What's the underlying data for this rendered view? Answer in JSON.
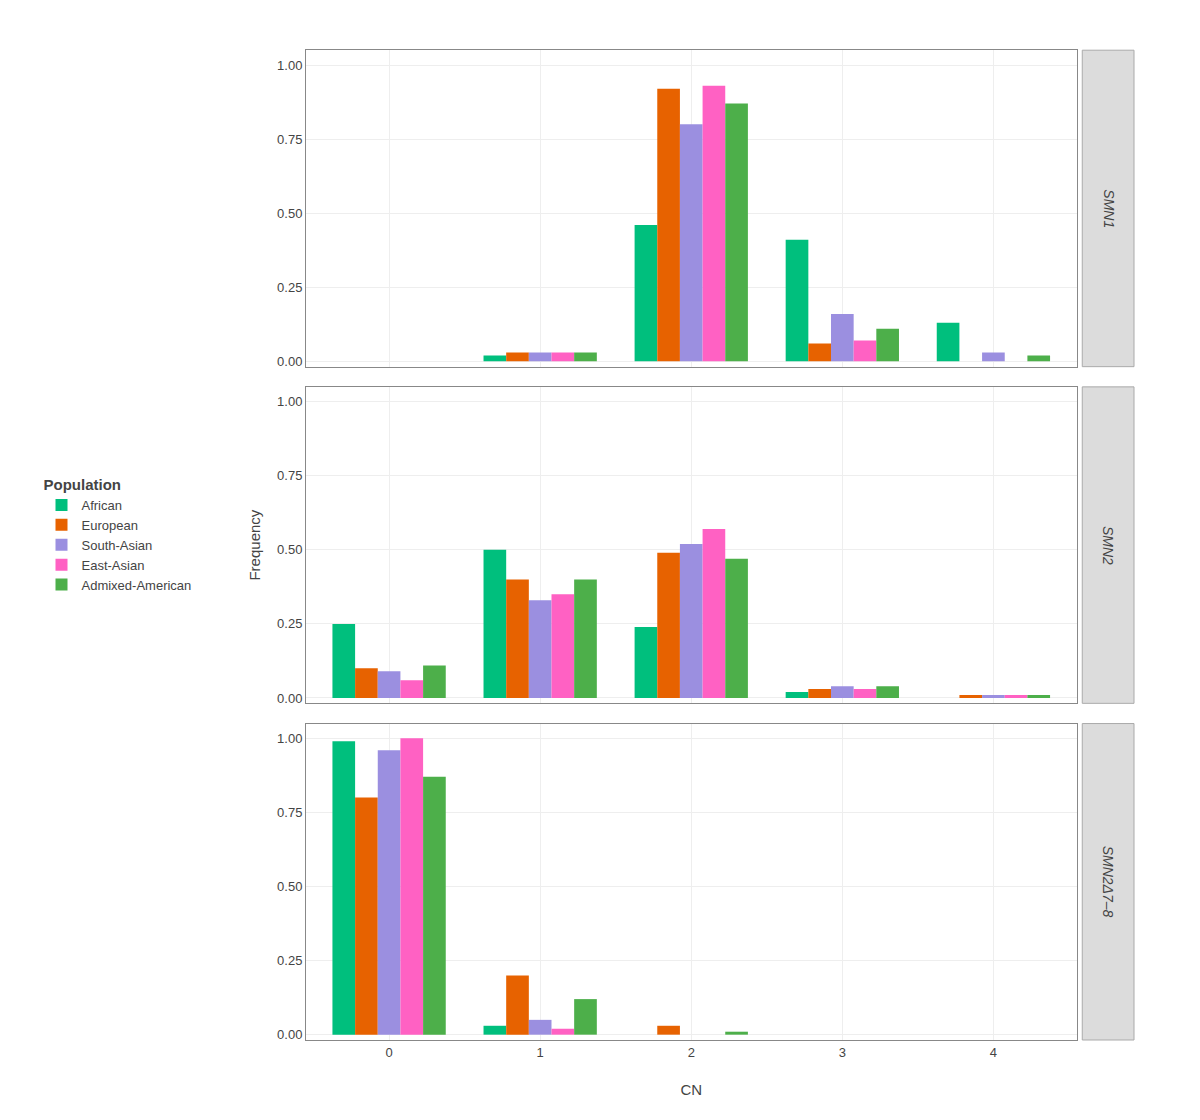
{
  "chart_data": [
    {
      "type": "bar",
      "title": "SMN1",
      "x": [
        0,
        1,
        2,
        3,
        4
      ],
      "series": [
        {
          "name": "African",
          "color": "#00BF7D",
          "values": [
            0.0,
            0.02,
            0.46,
            0.41,
            0.13
          ]
        },
        {
          "name": "European",
          "color": "#E76200",
          "values": [
            0.0,
            0.03,
            0.92,
            0.06,
            0.0
          ]
        },
        {
          "name": "South-Asian",
          "color": "#9B8FE0",
          "values": [
            0.0,
            0.03,
            0.8,
            0.16,
            0.03
          ]
        },
        {
          "name": "East-Asian",
          "color": "#FF61C3",
          "values": [
            0.0,
            0.03,
            0.93,
            0.07,
            0.0
          ]
        },
        {
          "name": "Admixed-American",
          "color": "#4DAF4A",
          "values": [
            0.0,
            0.03,
            0.87,
            0.11,
            0.02
          ]
        }
      ],
      "xlim": [
        -0.55,
        4.55
      ],
      "xticks": [
        0,
        1,
        2,
        3,
        4
      ],
      "ylim": [
        -0.018,
        1.05
      ],
      "yticks": [
        {
          "value": 0.0,
          "label": "0.00"
        },
        0.25,
        {
          "value": 0.5,
          "label": "0.50"
        },
        0.75,
        {
          "value": 1.0,
          "label": "1.00"
        }
      ],
      "grid": true,
      "tick_labels": "y",
      "legend": "left",
      "legend_title": "Population"
    },
    {
      "type": "bar",
      "title": "SMN2",
      "x": [
        0,
        1,
        2,
        3,
        4
      ],
      "series": [
        {
          "name": "African",
          "color": "#00BF7D",
          "values": [
            0.25,
            0.5,
            0.24,
            0.02,
            0.0
          ]
        },
        {
          "name": "European",
          "color": "#E76200",
          "values": [
            0.1,
            0.4,
            0.49,
            0.03,
            0.01
          ]
        },
        {
          "name": "South-Asian",
          "color": "#9B8FE0",
          "values": [
            0.09,
            0.33,
            0.52,
            0.04,
            0.01
          ]
        },
        {
          "name": "East-Asian",
          "color": "#FF61C3",
          "values": [
            0.06,
            0.35,
            0.57,
            0.03,
            0.01
          ]
        },
        {
          "name": "Admixed-American",
          "color": "#4DAF4A",
          "values": [
            0.11,
            0.4,
            0.47,
            0.04,
            0.01
          ]
        }
      ],
      "ylabel": "Frequency",
      "xlim": [
        -0.55,
        4.55
      ],
      "xticks": [
        0,
        1,
        2,
        3,
        4
      ],
      "ylim": [
        -0.018,
        1.05
      ],
      "yticks": [
        {
          "value": 0.0,
          "label": "0.00"
        },
        0.25,
        {
          "value": 0.5,
          "label": "0.50"
        },
        0.75,
        {
          "value": 1.0,
          "label": "1.00"
        }
      ],
      "grid": true,
      "tick_labels": "y"
    },
    {
      "type": "bar",
      "title": "SMN2Δ7–8",
      "x": [
        0,
        1,
        2,
        3,
        4
      ],
      "series": [
        {
          "name": "African",
          "color": "#00BF7D",
          "values": [
            0.99,
            0.03,
            0.0,
            0.0,
            0.0
          ]
        },
        {
          "name": "European",
          "color": "#E76200",
          "values": [
            0.8,
            0.2,
            0.03,
            0.0,
            0.0
          ]
        },
        {
          "name": "South-Asian",
          "color": "#9B8FE0",
          "values": [
            0.96,
            0.05,
            0.0,
            0.0,
            0.0
          ]
        },
        {
          "name": "East-Asian",
          "color": "#FF61C3",
          "values": [
            1.0,
            0.02,
            0.0,
            0.0,
            0.0
          ]
        },
        {
          "name": "Admixed-American",
          "color": "#4DAF4A",
          "values": [
            0.87,
            0.12,
            0.01,
            0.0,
            0.0
          ]
        }
      ],
      "xlabel": "CN",
      "xlim": [
        -0.55,
        4.55
      ],
      "xticks": [
        0,
        1,
        2,
        3,
        4
      ],
      "ylim": [
        -0.018,
        1.05
      ],
      "yticks": [
        {
          "value": 0.0,
          "label": "0.00"
        },
        0.25,
        {
          "value": 0.5,
          "label": "0.50"
        },
        0.75,
        {
          "value": 1.0,
          "label": "1.00"
        }
      ],
      "grid": true
    }
  ]
}
